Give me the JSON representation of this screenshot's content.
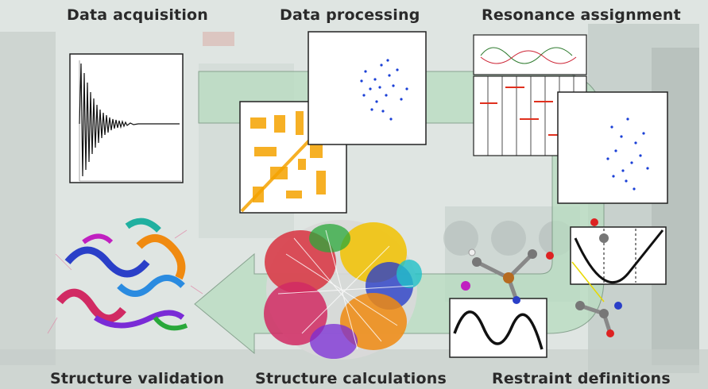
{
  "labels": {
    "data_acquisition": "Data acquisition",
    "data_processing": "Data processing",
    "resonance_assignment": "Resonance assignment",
    "structure_validation": "Structure validation",
    "structure_calculations": "Structure calculations",
    "restraint_definitions": "Restraint definitions"
  },
  "colors": {
    "arrow_fill": "#b8dcc0",
    "peak_orange": "#f5a300",
    "peak_blue": "#1a3fd6",
    "assignment_red": "#e0301e"
  }
}
